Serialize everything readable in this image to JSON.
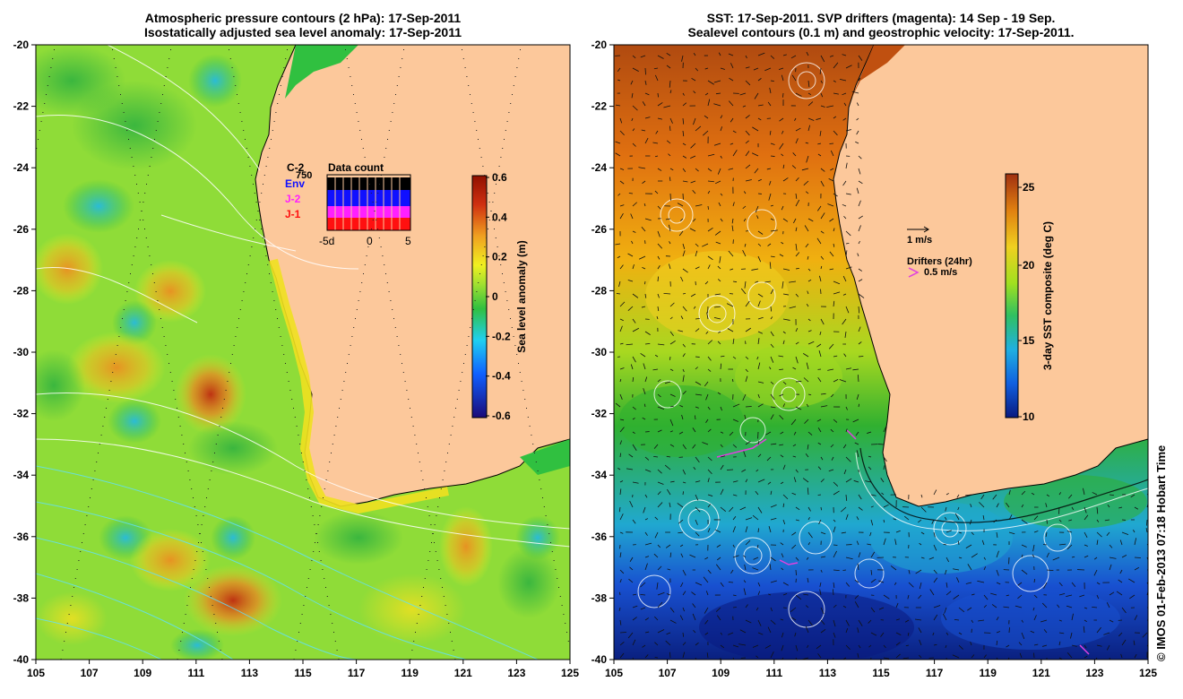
{
  "left_panel": {
    "title_line1": "Atmospheric pressure contours (2 hPa): 17-Sep-2011",
    "title_line2": "Isostatically adjusted sea level anomaly: 17-Sep-2011",
    "colorbar_label": "Sea level anomaly (m)",
    "colorbar_ticks": [
      "0.6",
      "0.4",
      "0.2",
      "0",
      "-0.2",
      "-0.4",
      "-0.6"
    ],
    "inset_title": "Data count",
    "inset_missions": [
      {
        "label": "C-2",
        "color": "#000000"
      },
      {
        "label": "Env",
        "color": "#1010ff"
      },
      {
        "label": "J-2",
        "color": "#ff20ff"
      },
      {
        "label": "J-1",
        "color": "#ff1010"
      }
    ],
    "inset_count_label": "750",
    "inset_xticks": [
      "-5d",
      "0",
      "5"
    ]
  },
  "right_panel": {
    "title_line1": "SST: 17-Sep-2011. SVP drifters (magenta): 14 Sep - 19 Sep.",
    "title_line2": "Sealevel contours (0.1 m) and geostrophic velocity: 17-Sep-2011.",
    "colorbar_label": "3-day SST composite (deg C)",
    "colorbar_ticks": [
      "25",
      "20",
      "15",
      "10"
    ],
    "velocity_scale_label": "1 m/s",
    "drifters_label": "Drifters (24hr)",
    "drifters_scale_label": "0.5 m/s"
  },
  "axes": {
    "lon_ticks": [
      "105",
      "107",
      "109",
      "111",
      "113",
      "115",
      "117",
      "119",
      "121",
      "123",
      "125"
    ],
    "lat_ticks": [
      "-20",
      "-22",
      "-24",
      "-26",
      "-28",
      "-30",
      "-32",
      "-34",
      "-36",
      "-38",
      "-40"
    ]
  },
  "credit": "© IMOS 01-Feb-2013 07:18 Hobart Time",
  "colors": {
    "land": "#fcc89b",
    "ssh_scale": [
      "#1a0a78",
      "#1060ff",
      "#20d0f0",
      "#30c040",
      "#a0e030",
      "#f0f020",
      "#f0a020",
      "#d03010",
      "#901000"
    ],
    "sst_scale": [
      "#0a1a80",
      "#1060e0",
      "#20b0e0",
      "#30c060",
      "#a0e020",
      "#f0d020",
      "#e08010",
      "#a03010"
    ]
  }
}
